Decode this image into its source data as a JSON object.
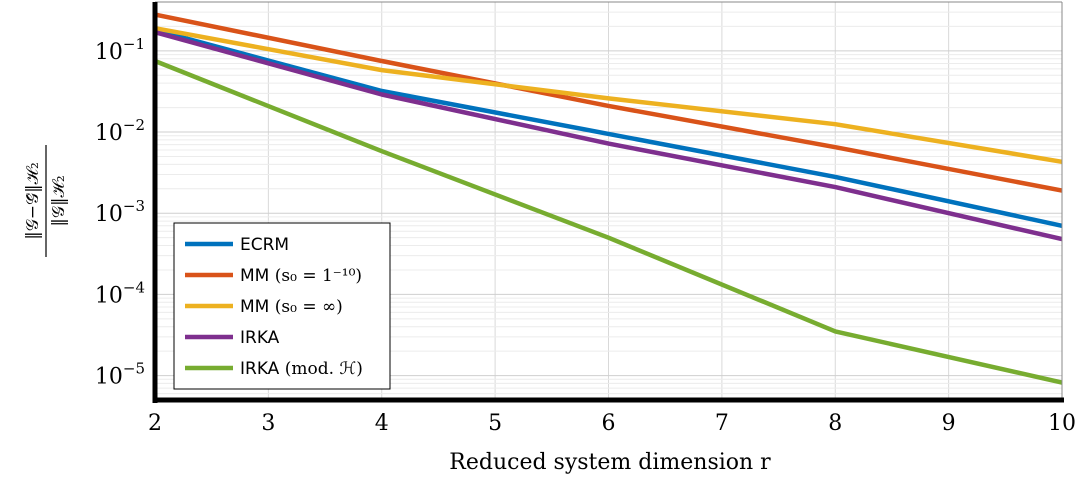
{
  "chart_data": {
    "type": "line",
    "xlabel": "Reduced system dimension r",
    "ylabel": {
      "numerator": "‖𝒢−𝒢̂‖ℋ₂",
      "denominator": "‖𝒢‖ℋ₂"
    },
    "xlim": [
      2,
      10
    ],
    "ylim": [
      5e-06,
      0.4
    ],
    "yscale": "log",
    "x_ticks": [
      "2",
      "3",
      "4",
      "5",
      "6",
      "7",
      "8",
      "9",
      "10"
    ],
    "y_ticks": [
      {
        "base": "10",
        "exp": "−1"
      },
      {
        "base": "10",
        "exp": "−2"
      },
      {
        "base": "10",
        "exp": "−3"
      },
      {
        "base": "10",
        "exp": "−4"
      },
      {
        "base": "10",
        "exp": "−5"
      }
    ],
    "grid": true,
    "legend_position": "bottom-left",
    "series": [
      {
        "name": "ECRM",
        "color": "#0072bd",
        "x": [
          2,
          4,
          6,
          8,
          10
        ],
        "y": [
          0.18,
          0.032,
          0.0095,
          0.0028,
          0.0007
        ]
      },
      {
        "name": "MM",
        "name_math": "(s₀ = 1⁻¹⁰)",
        "color": "#d95319",
        "x": [
          2,
          4,
          6,
          8,
          10
        ],
        "y": [
          0.28,
          0.075,
          0.021,
          0.0065,
          0.0019
        ]
      },
      {
        "name": "MM",
        "name_math": "(s₀ = ∞)",
        "color": "#edb120",
        "x": [
          2,
          4,
          6,
          8,
          10
        ],
        "y": [
          0.19,
          0.058,
          0.026,
          0.0125,
          0.0043
        ]
      },
      {
        "name": "IRKA",
        "color": "#7e2f8e",
        "x": [
          2,
          4,
          6,
          8,
          10
        ],
        "y": [
          0.17,
          0.029,
          0.0072,
          0.0021,
          0.00048
        ]
      },
      {
        "name": "IRKA",
        "name_math": "(mod. ℋ)",
        "color": "#77ac30",
        "x": [
          2,
          4,
          6,
          8,
          10
        ],
        "y": [
          0.075,
          0.0058,
          0.0005,
          3.5e-05,
          8.2e-06
        ]
      }
    ]
  }
}
